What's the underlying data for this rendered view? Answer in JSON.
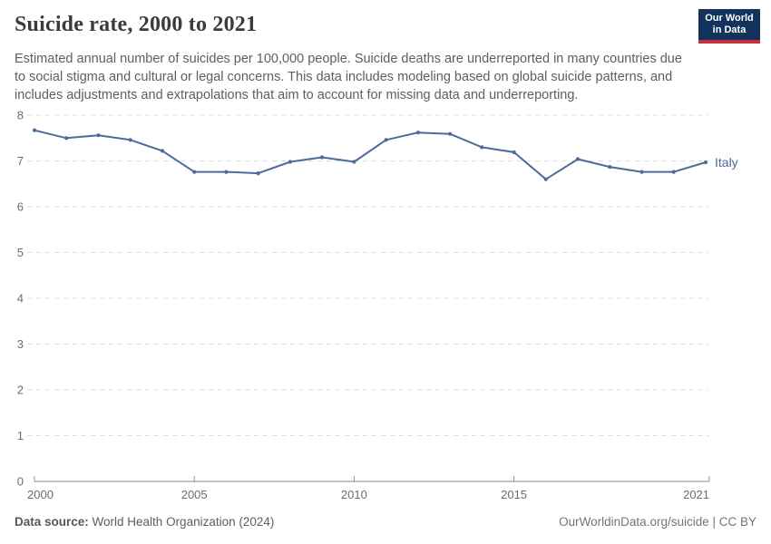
{
  "header": {
    "title": "Suicide rate, 2000 to 2021",
    "subtitle": "Estimated annual number of suicides per 100,000 people. Suicide deaths are underreported in many countries due to social stigma and cultural or legal concerns. This data includes modeling based on global suicide patterns, and includes adjustments and extrapolations that aim to account for missing data and underreporting.",
    "logo": {
      "line1": "Our World",
      "line2": "in Data",
      "bg_color": "#13335c",
      "accent_color": "#c5303e"
    }
  },
  "chart_data": {
    "type": "line",
    "x": [
      2000,
      2001,
      2002,
      2003,
      2004,
      2005,
      2006,
      2007,
      2008,
      2009,
      2010,
      2011,
      2012,
      2013,
      2014,
      2015,
      2016,
      2017,
      2018,
      2019,
      2020,
      2021
    ],
    "series": [
      {
        "name": "Italy",
        "color": "#4C6A9C",
        "values": [
          7.67,
          7.5,
          7.56,
          7.46,
          7.22,
          6.76,
          6.76,
          6.73,
          6.98,
          7.08,
          6.98,
          7.46,
          7.62,
          7.59,
          7.3,
          7.19,
          6.6,
          7.04,
          6.87,
          6.76,
          6.76,
          6.97
        ]
      }
    ],
    "title": "Suicide rate, 2000 to 2021",
    "xlabel": "",
    "ylabel": "",
    "ylim": [
      0,
      8
    ],
    "yticks": [
      0,
      1,
      2,
      3,
      4,
      5,
      6,
      7,
      8
    ],
    "xticks": [
      2000,
      2005,
      2010,
      2015,
      2021
    ],
    "grid": "horizontal-dashed",
    "legend_position": "end-of-line-label",
    "axis_color": "#8f8f8f",
    "gridline_color": "#dcdcdc",
    "tick_label_color": "#6c6c6c"
  },
  "footer": {
    "source_label": "Data source:",
    "source_value": " World Health Organization (2024)",
    "rights": "OurWorldinData.org/suicide | CC BY"
  }
}
